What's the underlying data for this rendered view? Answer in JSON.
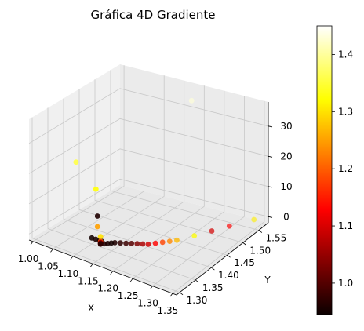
{
  "chart_data": {
    "type": "scatter",
    "title": "Gráfica 4D Gradiente",
    "xlabel": "X",
    "ylabel": "Y",
    "zlabel": "",
    "x_ticks": [
      "1.00",
      "1.05",
      "1.10",
      "1.15",
      "1.20",
      "1.25",
      "1.30",
      "1.35"
    ],
    "y_ticks": [
      "1.30",
      "1.35",
      "1.40",
      "1.45",
      "1.50",
      "1.55"
    ],
    "z_ticks": [
      "0",
      "10",
      "20",
      "30"
    ],
    "colorbar": {
      "colormap": "hot",
      "range": [
        0.945,
        1.45
      ],
      "ticks": [
        "1.0",
        "1.1",
        "1.2",
        "1.3",
        "1.4"
      ],
      "tick_values": [
        1.0,
        1.1,
        1.2,
        1.3,
        1.4
      ]
    },
    "xlim": [
      0.99,
      1.36
    ],
    "ylim": [
      1.29,
      1.58
    ],
    "zlim": [
      -2,
      38
    ],
    "grid": true,
    "points": [
      {
        "x": 1.15,
        "y": 1.3,
        "z": 22.0,
        "c": 1.33
      },
      {
        "x": 1.13,
        "y": 1.33,
        "z": 10.0,
        "c": 0.96
      },
      {
        "x": 1.13,
        "y": 1.33,
        "z": 6.5,
        "c": 1.25
      },
      {
        "x": 1.13,
        "y": 1.34,
        "z": 2.5,
        "c": 1.3
      },
      {
        "x": 1.13,
        "y": 1.34,
        "z": 0.9,
        "c": 1.2
      },
      {
        "x": 1.13,
        "y": 1.34,
        "z": 0.6,
        "c": 1.08
      },
      {
        "x": 1.13,
        "y": 1.34,
        "z": 0.4,
        "c": 1.03
      },
      {
        "x": 1.13,
        "y": 1.34,
        "z": 0.25,
        "c": 1.01
      },
      {
        "x": 1.13,
        "y": 1.34,
        "z": 0.15,
        "c": 0.99
      },
      {
        "x": 1.13,
        "y": 1.34,
        "z": 0.08,
        "c": 0.98
      },
      {
        "x": 1.13,
        "y": 1.34,
        "z": 0.02,
        "c": 0.97
      },
      {
        "x": 1.135,
        "y": 1.345,
        "z": 0.0,
        "c": 0.96
      },
      {
        "x": 1.14,
        "y": 1.35,
        "z": 0.0,
        "c": 0.955
      },
      {
        "x": 1.145,
        "y": 1.355,
        "z": 0.0,
        "c": 0.95
      },
      {
        "x": 1.1,
        "y": 1.35,
        "z": 0.0,
        "c": 0.95
      },
      {
        "x": 1.11,
        "y": 1.35,
        "z": 0.0,
        "c": 0.955
      },
      {
        "x": 1.12,
        "y": 1.35,
        "z": 0.0,
        "c": 0.96
      },
      {
        "x": 1.125,
        "y": 1.35,
        "z": 0.0,
        "c": 0.965
      },
      {
        "x": 1.15,
        "y": 1.36,
        "z": 0.0,
        "c": 0.96
      },
      {
        "x": 1.16,
        "y": 1.365,
        "z": 0.0,
        "c": 0.97
      },
      {
        "x": 1.17,
        "y": 1.37,
        "z": 0.0,
        "c": 0.98
      },
      {
        "x": 1.18,
        "y": 1.375,
        "z": 0.0,
        "c": 1.0
      },
      {
        "x": 1.19,
        "y": 1.38,
        "z": 0.0,
        "c": 1.03
      },
      {
        "x": 1.2,
        "y": 1.385,
        "z": 0.0,
        "c": 1.06
      },
      {
        "x": 1.21,
        "y": 1.39,
        "z": 0.0,
        "c": 1.09
      },
      {
        "x": 1.22,
        "y": 1.4,
        "z": 0.0,
        "c": 1.13
      },
      {
        "x": 1.23,
        "y": 1.41,
        "z": 0.0,
        "c": 1.18
      },
      {
        "x": 1.24,
        "y": 1.42,
        "z": 0.0,
        "c": 1.23
      },
      {
        "x": 1.25,
        "y": 1.43,
        "z": 0.0,
        "c": 1.27
      },
      {
        "x": 1.27,
        "y": 1.46,
        "z": 0.0,
        "c": 1.32
      },
      {
        "x": 1.29,
        "y": 1.49,
        "z": 0.0,
        "c": 1.09
      },
      {
        "x": 1.31,
        "y": 1.52,
        "z": 0.0,
        "c": 1.12
      },
      {
        "x": 1.34,
        "y": 1.56,
        "z": 0.0,
        "c": 1.31
      },
      {
        "x": 1.2,
        "y": 1.54,
        "z": 36.0,
        "c": 1.43
      },
      {
        "x": 1.1,
        "y": 1.3,
        "z": 28.5,
        "c": 1.36
      }
    ]
  }
}
